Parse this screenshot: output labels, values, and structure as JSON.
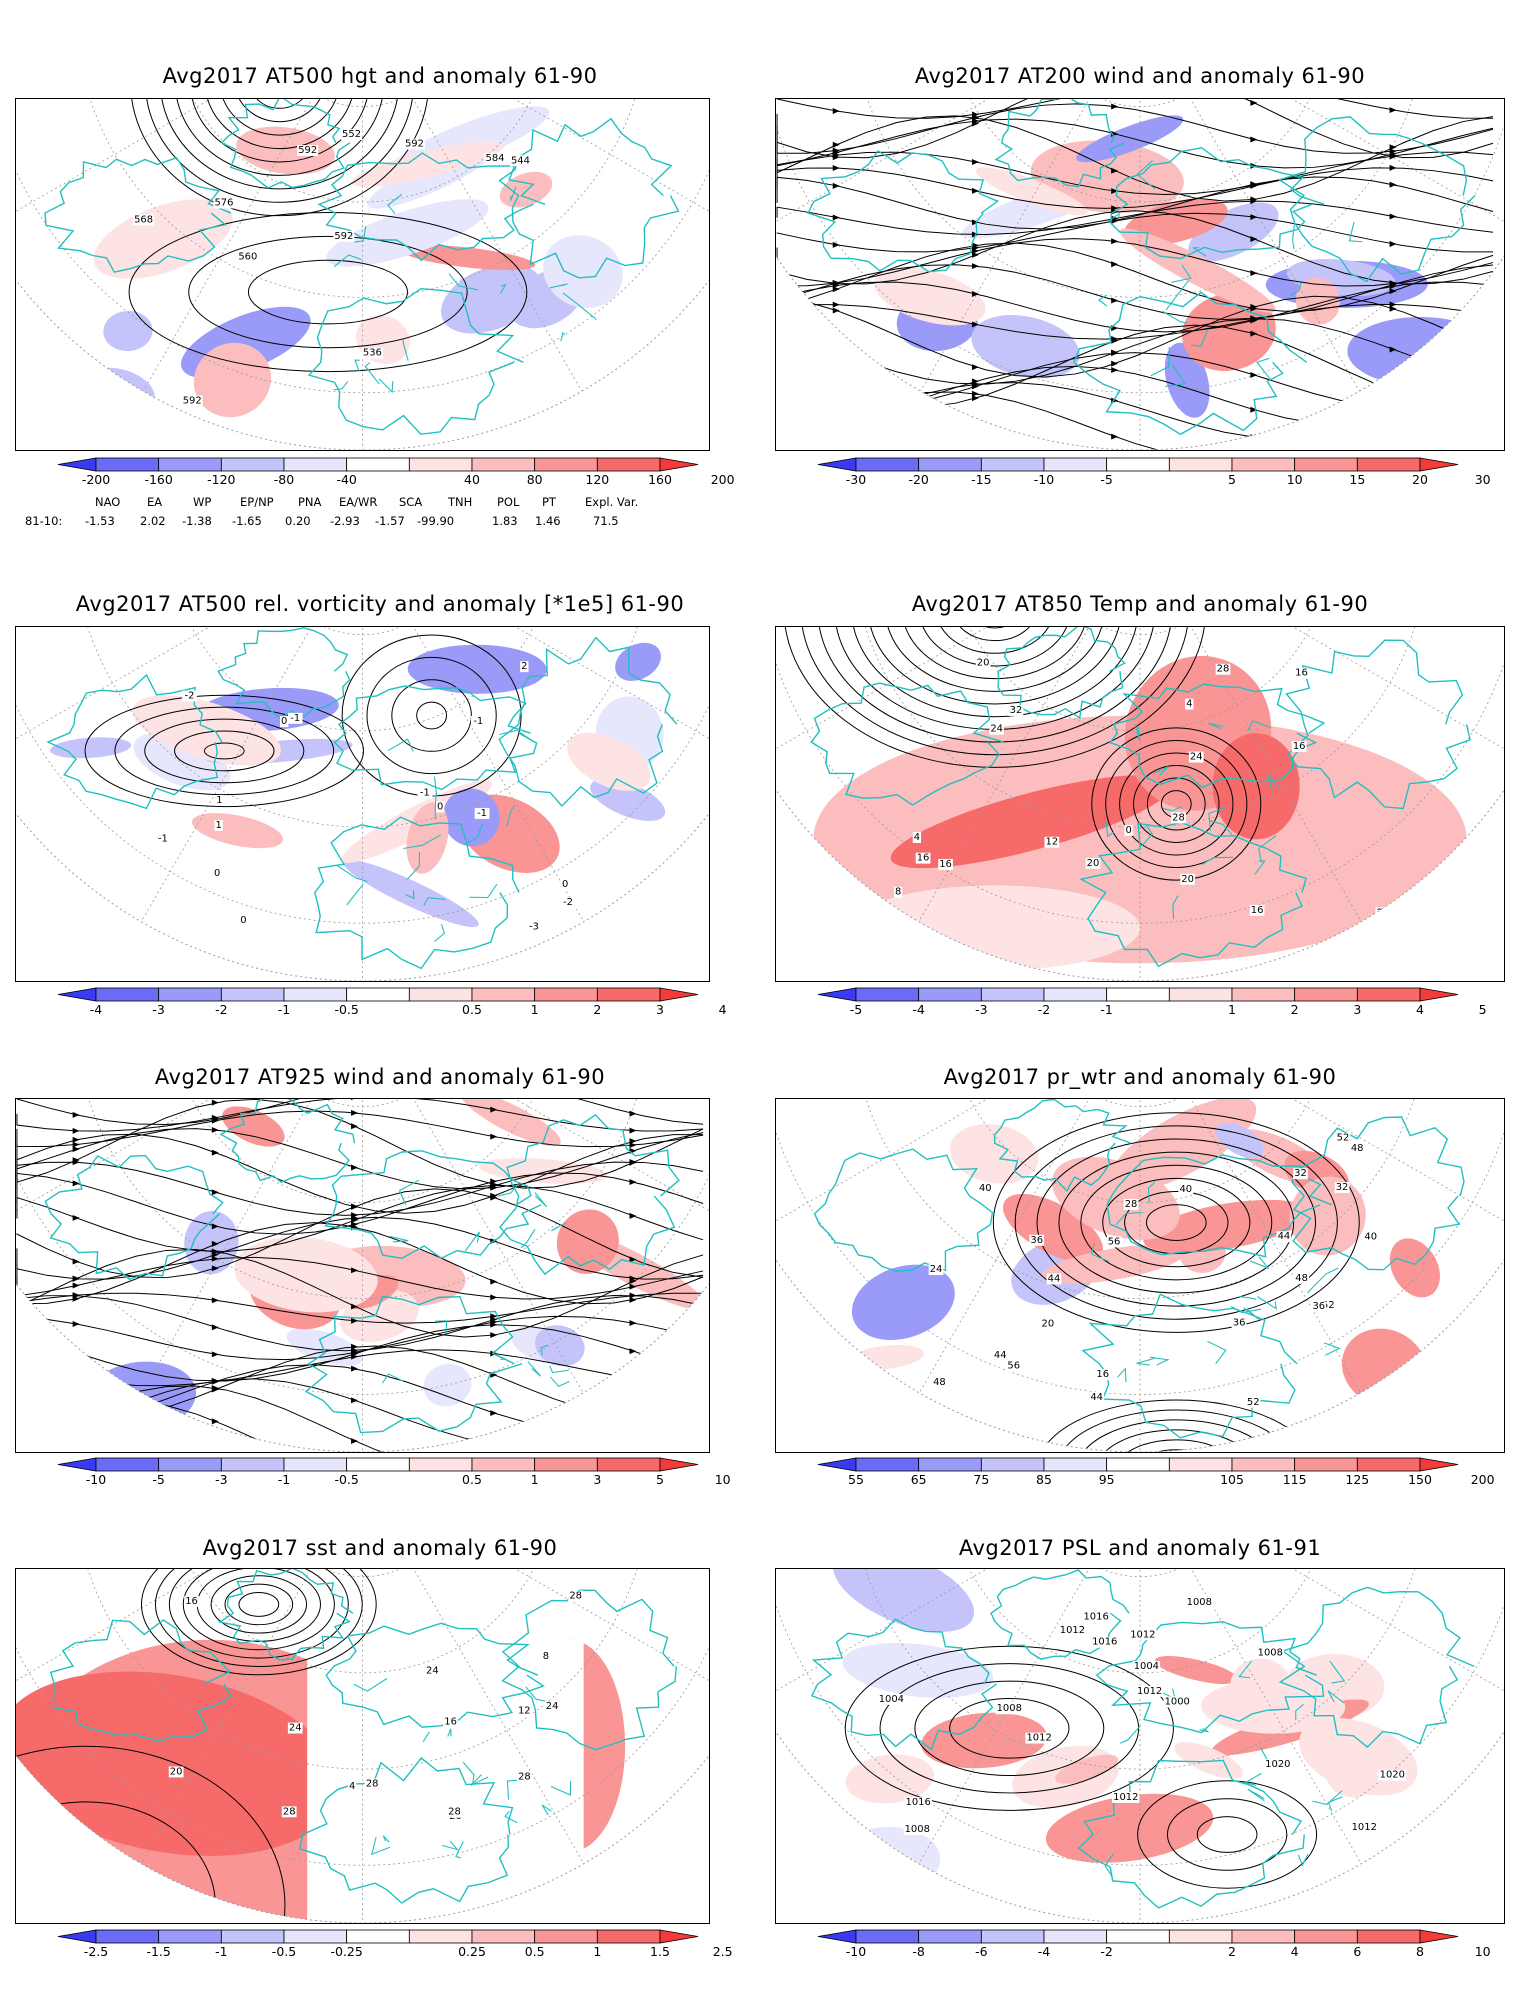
{
  "panels": [
    {
      "id": "p1",
      "title": "Avg2017 AT500 hgt and anomaly 61-90",
      "map_type": "height",
      "contour_labels": [
        "536",
        "544",
        "552",
        "560",
        "568",
        "576",
        "584",
        "592",
        "592",
        "592",
        "592"
      ],
      "colorbar": {
        "tick_labels": [
          "-200",
          "-160",
          "-120",
          "-80",
          "-40",
          "40",
          "80",
          "120",
          "160",
          "200"
        ],
        "colors": [
          "#3a3af5",
          "#6b6bf7",
          "#9a9af9",
          "#c4c4fb",
          "#e6e6fd",
          "#ffffff",
          "#fde3e3",
          "#fbbdbd",
          "#f99595",
          "#f76a6a",
          "#f53a3a"
        ]
      }
    },
    {
      "id": "p2",
      "title": "Avg2017 AT200 wind and anomaly 61-90",
      "map_type": "streamlines",
      "contour_labels": [],
      "colorbar": {
        "tick_labels": [
          "-30",
          "-20",
          "-15",
          "-10",
          "-5",
          "5",
          "10",
          "15",
          "20",
          "30"
        ],
        "colors": [
          "#3a3af5",
          "#6b6bf7",
          "#9a9af9",
          "#c4c4fb",
          "#e6e6fd",
          "#ffffff",
          "#fde3e3",
          "#fbbdbd",
          "#f99595",
          "#f76a6a",
          "#f53a3a"
        ]
      }
    },
    {
      "id": "p3",
      "title": "Avg2017 AT500 rel. vorticity and anomaly [*1e5] 61-90",
      "map_type": "vorticity",
      "contour_labels": [
        "0",
        "0",
        "0",
        "-1",
        "-1",
        "-1",
        "-2",
        "-2",
        "-3",
        "1",
        "1",
        "2",
        "0",
        "0",
        "-1",
        "-1"
      ],
      "colorbar": {
        "tick_labels": [
          "-4",
          "-3",
          "-2",
          "-1",
          "-0.5",
          "0.5",
          "1",
          "2",
          "3",
          "4"
        ],
        "colors": [
          "#3a3af5",
          "#6b6bf7",
          "#9a9af9",
          "#c4c4fb",
          "#e6e6fd",
          "#ffffff",
          "#fde3e3",
          "#fbbdbd",
          "#f99595",
          "#f76a6a",
          "#f53a3a"
        ]
      }
    },
    {
      "id": "p4",
      "title": "Avg2017 AT850 Temp and anomaly 61-90",
      "map_type": "temperature",
      "contour_labels": [
        "16",
        "20",
        "4",
        "0",
        "4",
        "8",
        "12",
        "16",
        "20",
        "24",
        "28",
        "32",
        "28",
        "24",
        "20",
        "16",
        "16",
        "16",
        "20"
      ],
      "colorbar": {
        "tick_labels": [
          "-5",
          "-4",
          "-3",
          "-2",
          "-1",
          "1",
          "2",
          "3",
          "4",
          "5"
        ],
        "colors": [
          "#3a3af5",
          "#6b6bf7",
          "#9a9af9",
          "#c4c4fb",
          "#e6e6fd",
          "#ffffff",
          "#fde3e3",
          "#fbbdbd",
          "#f99595",
          "#f76a6a",
          "#f53a3a"
        ]
      }
    },
    {
      "id": "p5",
      "title": "Avg2017 AT925 wind and anomaly 61-90",
      "map_type": "streamlines",
      "contour_labels": [],
      "colorbar": {
        "tick_labels": [
          "-10",
          "-5",
          "-3",
          "-1",
          "-0.5",
          "0.5",
          "1",
          "3",
          "5",
          "10"
        ],
        "colors": [
          "#3a3af5",
          "#6b6bf7",
          "#9a9af9",
          "#c4c4fb",
          "#e6e6fd",
          "#ffffff",
          "#fde3e3",
          "#fbbdbd",
          "#f99595",
          "#f76a6a",
          "#f53a3a"
        ]
      }
    },
    {
      "id": "p6",
      "title": "Avg2017 pr_wtr and anomaly 61-90",
      "map_type": "precip_water",
      "contour_labels": [
        "52",
        "48",
        "44",
        "40",
        "36",
        "32",
        "36",
        "40",
        "44",
        "16",
        "20",
        "24",
        "28",
        "32",
        "36",
        "40",
        "44",
        "48",
        "52",
        "56",
        "44",
        "48",
        "56",
        "52"
      ],
      "colorbar": {
        "tick_labels": [
          "55",
          "65",
          "75",
          "85",
          "95",
          "105",
          "115",
          "125",
          "150",
          "200"
        ],
        "colors": [
          "#3a3af5",
          "#6b6bf7",
          "#9a9af9",
          "#c4c4fb",
          "#e6e6fd",
          "#ffffff",
          "#fde3e3",
          "#fbbdbd",
          "#f99595",
          "#f76a6a",
          "#f53a3a"
        ]
      }
    },
    {
      "id": "p7",
      "title": "Avg2017 sst and anomaly 61-90",
      "map_type": "sst",
      "contour_labels": [
        "28",
        "24",
        "24",
        "20",
        "16",
        "12",
        "8",
        "4",
        "28",
        "28",
        "28",
        "28",
        "24",
        "20",
        "16"
      ],
      "colorbar": {
        "tick_labels": [
          "-2.5",
          "-1.5",
          "-1",
          "-0.5",
          "-0.25",
          "0.25",
          "0.5",
          "1",
          "1.5",
          "2.5"
        ],
        "colors": [
          "#3a3af5",
          "#6b6bf7",
          "#9a9af9",
          "#c4c4fb",
          "#e6e6fd",
          "#ffffff",
          "#fde3e3",
          "#fbbdbd",
          "#f99595",
          "#f76a6a",
          "#f53a3a"
        ]
      }
    },
    {
      "id": "p8",
      "title": "Avg2017 PSL and anomaly 61-91",
      "map_type": "psl",
      "contour_labels": [
        "1004",
        "1008",
        "1012",
        "1016",
        "1020",
        "1020",
        "1016",
        "1012",
        "1012",
        "1008",
        "1008",
        "1012",
        "1012",
        "1016",
        "1004",
        "1000",
        "1008",
        "1012"
      ],
      "colorbar": {
        "tick_labels": [
          "-10",
          "-8",
          "-6",
          "-4",
          "-2",
          "2",
          "4",
          "6",
          "8",
          "10"
        ],
        "colors": [
          "#3a3af5",
          "#6b6bf7",
          "#9a9af9",
          "#c4c4fb",
          "#e6e6fd",
          "#ffffff",
          "#fde3e3",
          "#fbbdbd",
          "#f99595",
          "#f76a6a",
          "#f53a3a"
        ]
      }
    }
  ],
  "teleconnections": {
    "headers": [
      "NAO",
      "EA",
      "WP",
      "EP/NP",
      "PNA",
      "EA/WR",
      "SCA",
      "TNH",
      "POL",
      "PT",
      "Expl. Var."
    ],
    "row_label": "81-10:",
    "values": [
      "-1.53",
      "2.02",
      "-1.38",
      "-1.65",
      "0.20",
      "-2.93",
      "-1.57",
      "-99.90",
      "1.83",
      "1.46",
      "71.5"
    ]
  },
  "colors": {
    "coastline": "#20c0c0",
    "contour": "#000000",
    "grid": "#9a9a9a"
  }
}
